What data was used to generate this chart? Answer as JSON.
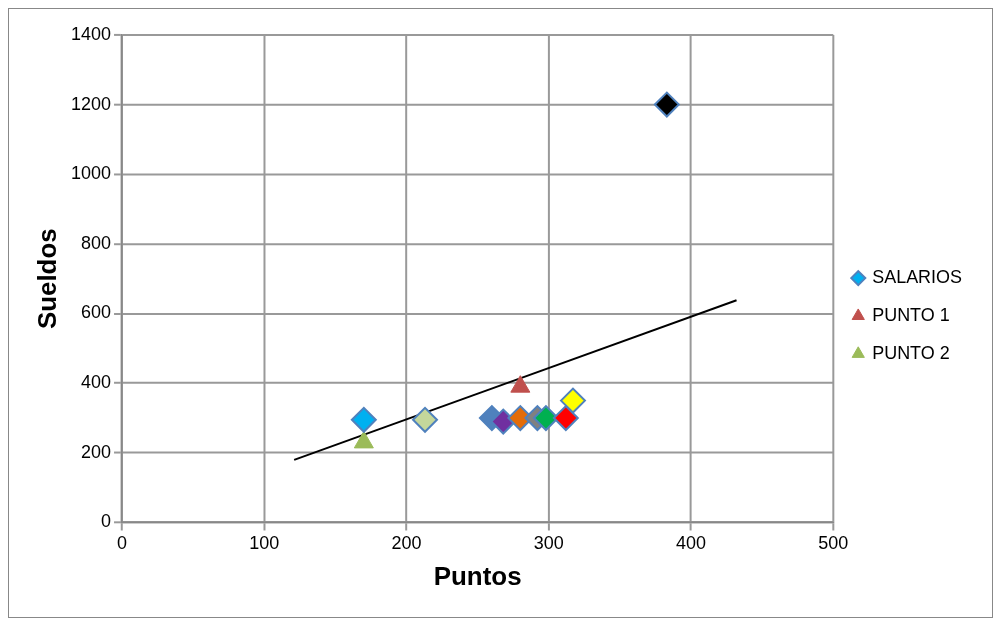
{
  "chart_data": {
    "type": "scatter",
    "xlabel": "Puntos",
    "ylabel": "Sueldos",
    "xlim": [
      0,
      500
    ],
    "xticks": [
      0,
      100,
      200,
      300,
      400,
      500
    ],
    "ylim": [
      0,
      1400
    ],
    "yticks": [
      0,
      200,
      400,
      600,
      800,
      1000,
      1200,
      1400
    ],
    "grid": true,
    "legend": "right",
    "series": [
      {
        "name": "SALARIOS",
        "color": "#4f81bd",
        "marker": "diamond",
        "x": [
          170,
          213,
          260,
          268,
          280,
          292,
          298,
          312,
          317,
          383
        ],
        "values": [
          295,
          295,
          300,
          290,
          300,
          300,
          300,
          300,
          350,
          1200
        ],
        "colors": [
          "#00b0f0",
          "#c4d79b",
          "#4f81bd",
          "#7030a0",
          "#e36c09",
          "#808080",
          "#00b050",
          "#ff0000",
          "#ffff00",
          "#000000"
        ]
      },
      {
        "name": "PUNTO 1",
        "color": "#c0504d",
        "marker": "triangle",
        "x": [
          280
        ],
        "values": [
          390
        ]
      },
      {
        "name": "PUNTO 2",
        "color": "#9bbb59",
        "marker": "triangle",
        "x": [
          170
        ],
        "values": [
          230
        ]
      },
      {
        "type": "line",
        "color": "#000000",
        "marker": "none",
        "x": [
          121,
          432
        ],
        "values": [
          180,
          638
        ]
      }
    ]
  }
}
